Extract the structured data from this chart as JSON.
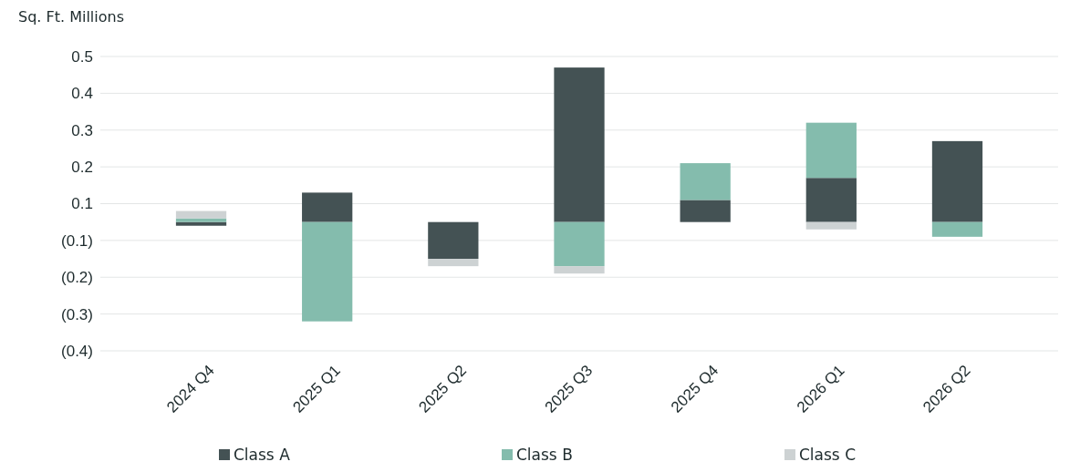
{
  "chart_data": {
    "type": "bar",
    "stacked": true,
    "ylabel": "Sq. Ft. Millions",
    "categories": [
      "2024 Q4",
      "2025 Q1",
      "2025 Q2",
      "2025 Q3",
      "2025 Q4",
      "2026 Q1",
      "2026 Q2"
    ],
    "series": [
      {
        "name": "Class A",
        "color": "#445254",
        "values": [
          -0.01,
          0.08,
          -0.1,
          0.42,
          0.06,
          0.12,
          0.22
        ]
      },
      {
        "name": "Class B",
        "color": "#84bcad",
        "values": [
          0.01,
          -0.27,
          0,
          -0.12,
          0.1,
          0.15,
          -0.04
        ]
      },
      {
        "name": "Class C",
        "color": "#cdd2d3",
        "values": [
          0.02,
          0,
          -0.02,
          -0.02,
          0,
          -0.02,
          0
        ]
      }
    ],
    "ylim": [
      -0.35,
      0.45
    ],
    "yticks": [
      {
        "value": 0.45,
        "label": "0.5"
      },
      {
        "value": 0.35,
        "label": "0.4"
      },
      {
        "value": 0.25,
        "label": "0.3"
      },
      {
        "value": 0.15,
        "label": "0.2"
      },
      {
        "value": 0.05,
        "label": "0.1"
      },
      {
        "value": -0.05,
        "label": "(0.1)"
      },
      {
        "value": -0.15,
        "label": "(0.2)"
      },
      {
        "value": -0.25,
        "label": "(0.3)"
      },
      {
        "value": -0.35,
        "label": "(0.4)"
      }
    ],
    "grid": "y",
    "legend": "bottom"
  }
}
